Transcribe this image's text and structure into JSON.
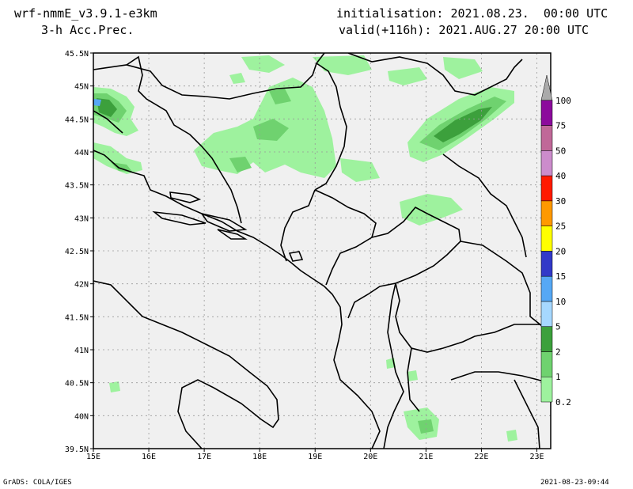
{
  "header": {
    "model": "wrf-nmmE_v3.9.1-e3km",
    "product": "3-h Acc.Prec.",
    "init": "initialisation: 2021.08.23.  00:00 UTC",
    "valid": "valid(+116h): 2021.AUG.27 20:00 UTC"
  },
  "footer": {
    "left": "GrADS: COLA/IGES",
    "right": "2021-08-23-09:44"
  },
  "map": {
    "lat_labels": [
      "45.5N",
      "45N",
      "44.5N",
      "44N",
      "43.5N",
      "43N",
      "42.5N",
      "42N",
      "41.5N",
      "41N",
      "40.5N",
      "40N",
      "39.5N"
    ],
    "lat_values": [
      45.5,
      45,
      44.5,
      44,
      43.5,
      43,
      42.5,
      42,
      41.5,
      41,
      40.5,
      40,
      39.5
    ],
    "lon_labels": [
      "15E",
      "16E",
      "17E",
      "18E",
      "19E",
      "20E",
      "21E",
      "22E",
      "23E"
    ],
    "lon_values": [
      15,
      16,
      17,
      18,
      19,
      20,
      21,
      22,
      23
    ],
    "lat_range": [
      39.5,
      45.5
    ],
    "lon_range": [
      15,
      23.25
    ],
    "grid": true,
    "land_color": "#f0f0f0",
    "border_color": "#000000"
  },
  "legend": {
    "thresholds": [
      "0.2",
      "1",
      "2",
      "5",
      "10",
      "15",
      "20",
      "25",
      "30",
      "40",
      "50",
      "75",
      "100"
    ],
    "colors": [
      "#9ef29e",
      "#6fd26f",
      "#3ca03c",
      "#a6d8ff",
      "#56a8f5",
      "#3239c8",
      "#ffff00",
      "#ff9900",
      "#ff1a00",
      "#cc8ccc",
      "#c06898",
      "#8c0a9c",
      "#aaaaaa"
    ],
    "unit": ""
  }
}
